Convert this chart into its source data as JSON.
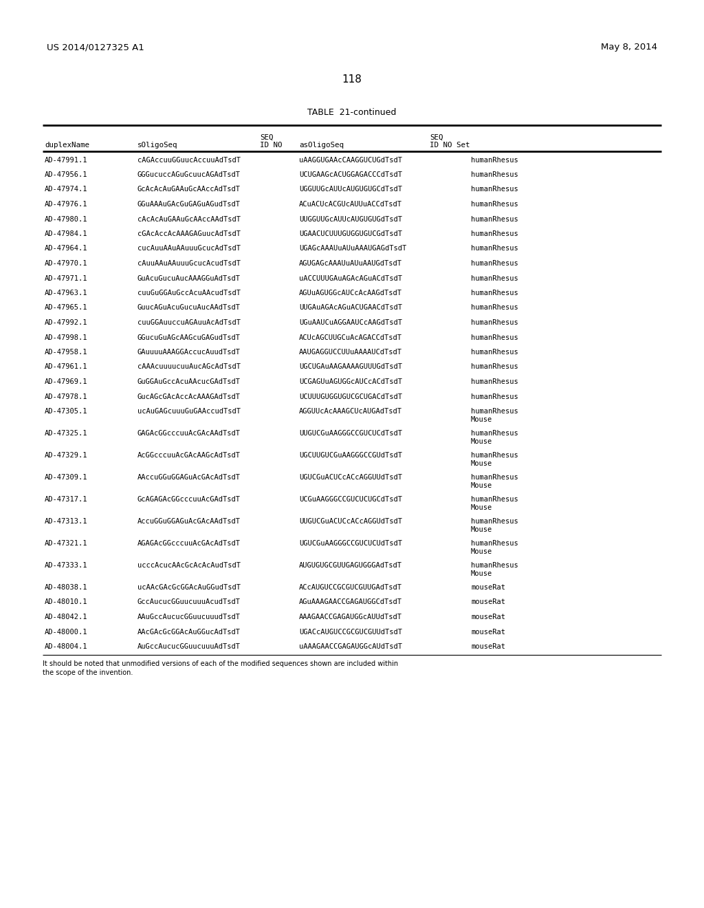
{
  "patent_number": "US 2014/0127325 A1",
  "date": "May 8, 2014",
  "page_number": "118",
  "table_title": "TABLE  21-continued",
  "col_headers_line1": [
    "",
    "",
    "SEQ",
    "",
    "SEQ"
  ],
  "col_headers_line2": [
    "duplexName",
    "sOligoSeq",
    "ID NO",
    "asOligoSeq",
    "ID NO Set"
  ],
  "rows": [
    [
      "AD-47991.1",
      "cAGAccuuGGuucAccuuAdTsdT",
      "",
      "uAAGGUGAAcCAAGGUCUGdTsdT",
      "humanRhesus"
    ],
    [
      "AD-47956.1",
      "GGGucuccAGuGcuucAGAdTsdT",
      "",
      "UCUGAAGcACUGGAGACCCdTsdT",
      "humanRhesus"
    ],
    [
      "AD-47974.1",
      "GcAcAcAuGAAuGcAAccAdTsdT",
      "",
      "UGGUUGcAUUcAUGUGUGCdTsdT",
      "humanRhesus"
    ],
    [
      "AD-47976.1",
      "GGuAAAuGAcGuGAGuAGudTsdT",
      "",
      "ACuACUcACGUcAUUuACCdTsdT",
      "humanRhesus"
    ],
    [
      "AD-47980.1",
      "cAcAcAuGAAuGcAAccAAdTsdT",
      "",
      "UUGGUUGcAUUcAUGUGUGdTsdT",
      "humanRhesus"
    ],
    [
      "AD-47984.1",
      "cGAcAccAcAAAGAGuucAdTsdT",
      "",
      "UGAACUCUUUGUGGUGUCGdTsdT",
      "humanRhesus"
    ],
    [
      "AD-47964.1",
      "cucAuuAAuAAuuuGcucAdTsdT",
      "",
      "UGAGcAAAUuAUuAAAUGAGdTsdT",
      "humanRhesus"
    ],
    [
      "AD-47970.1",
      "cAuuAAuAAuuuGcucAcudTsdT",
      "",
      "AGUGAGcAAAUuAUuAAUGdTsdT",
      "humanRhesus"
    ],
    [
      "AD-47971.1",
      "GuAcuGucuAucAAAGGuAdTsdT",
      "",
      "uACCUUUGAuAGAcAGuACdTsdT",
      "humanRhesus"
    ],
    [
      "AD-47963.1",
      "cuuGuGGAuGccAcuAAcudTsdT",
      "",
      "AGUuAGUGGcAUCcAcAAGdTsdT",
      "humanRhesus"
    ],
    [
      "AD-47965.1",
      "GuucAGuAcuGucuAucAAdTsdT",
      "",
      "UUGAuAGAcAGuACUGAACdTsdT",
      "humanRhesus"
    ],
    [
      "AD-47992.1",
      "cuuGGAuuccuAGAuuAcAdTsdT",
      "",
      "UGuAAUCuAGGAAUCcAAGdTsdT",
      "humanRhesus"
    ],
    [
      "AD-47998.1",
      "GGucuGuAGcAAGcuGAGudTsdT",
      "",
      "ACUcAGCUUGCuAcAGACCdTsdT",
      "humanRhesus"
    ],
    [
      "AD-47958.1",
      "GAuuuuAAAGGAccucAuudTsdT",
      "",
      "AAUGAGGUCCUUuAAAAUCdTsdT",
      "humanRhesus"
    ],
    [
      "AD-47961.1",
      "cAAAcuuuucuuAucAGcAdTsdT",
      "",
      "UGCUGAuAAGAAAAGUUUGdTsdT",
      "humanRhesus"
    ],
    [
      "AD-47969.1",
      "GuGGAuGccAcuAAcucGAdTsdT",
      "",
      "UCGAGUuAGUGGcAUCcACdTsdT",
      "humanRhesus"
    ],
    [
      "AD-47978.1",
      "GucAGcGAcAccAcAAAGAdTsdT",
      "",
      "UCUUUGUGGUGUCGCUGACdTsdT",
      "humanRhesus"
    ],
    [
      "AD-47305.1",
      "ucAuGAGcuuuGuGAAccudTsdT",
      "",
      "AGGUUcAcAAAGCUcAUGAdTsdT",
      "humanRhesus\nMouse"
    ],
    [
      "AD-47325.1",
      "GAGAcGGcccuuAcGAcAAdTsdT",
      "",
      "UUGUCGuAAGGGCCGUCUCdTsdT",
      "humanRhesus\nMouse"
    ],
    [
      "AD-47329.1",
      "AcGGcccuuAcGAcAAGcAdTsdT",
      "",
      "UGCUUGUCGuAAGGGCCGUdTsdT",
      "humanRhesus\nMouse"
    ],
    [
      "AD-47309.1",
      "AAccuGGuGGAGuAcGAcAdTsdT",
      "",
      "UGUCGuACUCcACcAGGUUdTsdT",
      "humanRhesus\nMouse"
    ],
    [
      "AD-47317.1",
      "GcAGAGAcGGcccuuAcGAdTsdT",
      "",
      "UCGuAAGGGCCGUCUCUGCdTsdT",
      "humanRhesus\nMouse"
    ],
    [
      "AD-47313.1",
      "AccuGGuGGAGuAcGAcAAdTsdT",
      "",
      "UUGUCGuACUCcACcAGGUdTsdT",
      "humanRhesus\nMouse"
    ],
    [
      "AD-47321.1",
      "AGAGAcGGcccuuAcGAcAdTsdT",
      "",
      "UGUCGuAAGGGCCGUCUCUdTsdT",
      "humanRhesus\nMouse"
    ],
    [
      "AD-47333.1",
      "ucccAcucAAcGcAcAcAudTsdT",
      "",
      "AUGUGUGCGUUGAGUGGGAdTsdT",
      "humanRhesus\nMouse"
    ],
    [
      "AD-48038.1",
      "ucAAcGAcGcGGAcAuGGudTsdT",
      "",
      "ACcAUGUCCGCGUCGUUGAdTsdT",
      "mouseRat"
    ],
    [
      "AD-48010.1",
      "GccAucucGGuucuuuAcudTsdT",
      "",
      "AGuAAAGAACCGAGAUGGCdTsdT",
      "mouseRat"
    ],
    [
      "AD-48042.1",
      "AAuGccAucucGGuucuuudTsdT",
      "",
      "AAAGAACCGAGAUGGcAUUdTsdT",
      "mouseRat"
    ],
    [
      "AD-48000.1",
      "AAcGAcGcGGAcAuGGucAdTsdT",
      "",
      "UGACcAUGUCCGCGUCGUUdTsdT",
      "mouseRat"
    ],
    [
      "AD-48004.1",
      "AuGccAucucGGuucuuuAdTsdT",
      "",
      "uAAAGAACCGAGAUGGcAUdTsdT",
      "mouseRat"
    ]
  ],
  "footer_text": "It should be noted that unmodified versions of each of the modified sequences shown are included within\nthe scope of the invention.",
  "bg_color": "#ffffff",
  "text_color": "#000000"
}
